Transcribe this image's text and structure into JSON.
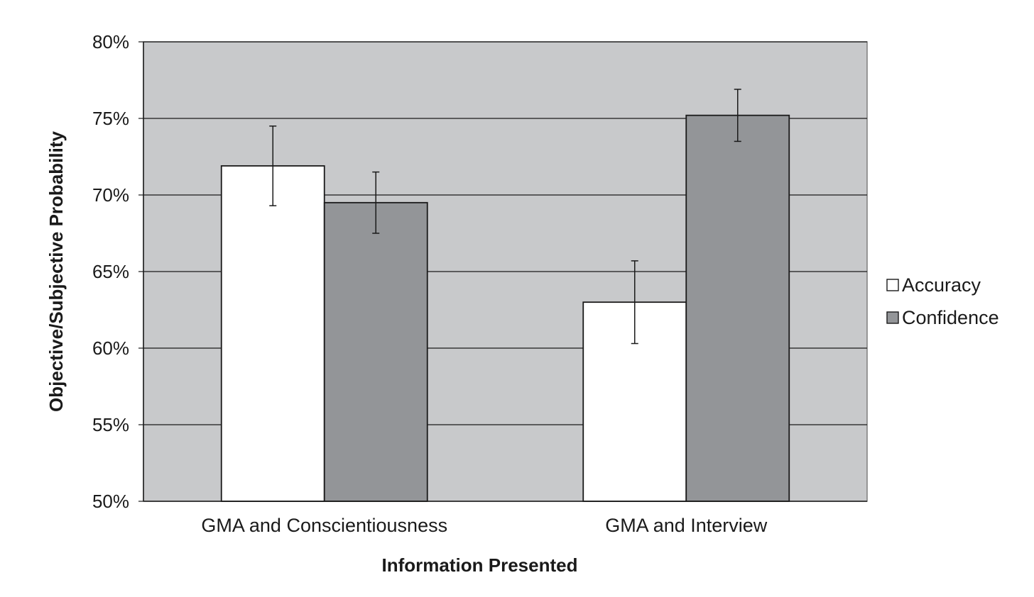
{
  "chart_data": {
    "type": "bar",
    "title": "",
    "xlabel": "Information Presented",
    "ylabel": "Objective/Subjective Probability",
    "categories": [
      "GMA and Conscientiousness",
      "GMA and Interview"
    ],
    "series": [
      {
        "name": "Accuracy",
        "values": [
          71.9,
          63.0
        ],
        "error_low": [
          69.3,
          60.3
        ],
        "error_high": [
          74.5,
          65.7
        ],
        "color": "#ffffff"
      },
      {
        "name": "Confidence",
        "values": [
          69.5,
          75.2
        ],
        "error_low": [
          67.5,
          73.5
        ],
        "error_high": [
          71.5,
          76.9
        ],
        "color": "#939598"
      }
    ],
    "ylim": [
      50,
      80
    ],
    "yticks": [
      50,
      55,
      60,
      65,
      70,
      75,
      80
    ],
    "ytick_labels": [
      "50%",
      "55%",
      "60%",
      "65%",
      "70%",
      "75%",
      "80%"
    ],
    "grid": true,
    "plot_background": "#c8c9cb",
    "legend_position": "right"
  }
}
